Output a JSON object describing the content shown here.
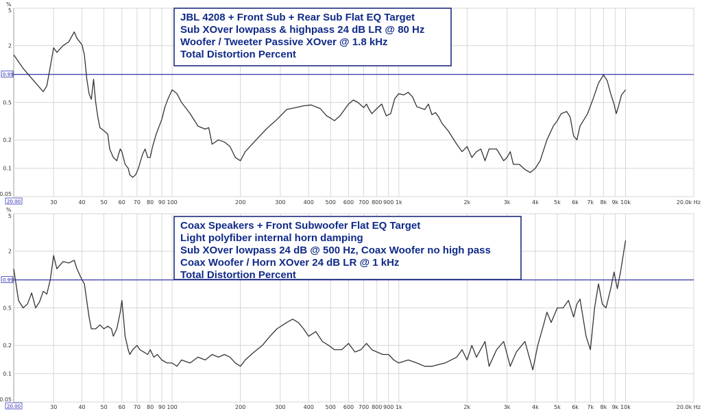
{
  "chart_data": [
    {
      "type": "line",
      "xscale": "log",
      "yscale": "log",
      "xlim": [
        20,
        20000
      ],
      "ylim": [
        0.05,
        5
      ],
      "x_ticks": [
        "30",
        "40",
        "50",
        "60",
        "70",
        "80",
        "90",
        "100",
        "200",
        "300",
        "400",
        "500",
        "600",
        "700",
        "800",
        "900",
        "1k",
        "2k",
        "3k",
        "4k",
        "5k",
        "6k",
        "7k",
        "8k",
        "9k",
        "10k",
        "20.0k Hz"
      ],
      "x_start_label": "20.00",
      "y_ticks": [
        "5",
        "2",
        "0.5",
        "0.2",
        "0.1",
        "0.05"
      ],
      "y_unit": "%",
      "reference_line": {
        "value": 0.99,
        "label": "0.99",
        "color": "#2b2bb0"
      },
      "annotation": [
        "JBL 4208 + Front Sub + Rear Sub Flat EQ Target",
        "Sub XOver lowpass & highpass 24 dB LR @ 80 Hz",
        "Woofer / Tweeter Passive XOver @ 1.8 kHz",
        "Total Distortion Percent"
      ],
      "series": [
        {
          "color": "#333333",
          "points": [
            [
              20,
              1.6
            ],
            [
              22,
              1.15
            ],
            [
              24,
              0.9
            ],
            [
              26,
              0.72
            ],
            [
              27,
              0.65
            ],
            [
              28,
              0.75
            ],
            [
              29,
              1.2
            ],
            [
              30,
              1.9
            ],
            [
              31,
              1.7
            ],
            [
              33,
              2.0
            ],
            [
              35,
              2.2
            ],
            [
              37,
              2.8
            ],
            [
              38,
              2.4
            ],
            [
              40,
              2.05
            ],
            [
              41,
              1.6
            ],
            [
              42,
              0.9
            ],
            [
              43,
              0.62
            ],
            [
              44,
              0.54
            ],
            [
              45,
              0.88
            ],
            [
              46,
              0.5
            ],
            [
              47,
              0.35
            ],
            [
              48,
              0.27
            ],
            [
              50,
              0.25
            ],
            [
              52,
              0.23
            ],
            [
              53,
              0.16
            ],
            [
              55,
              0.13
            ],
            [
              57,
              0.12
            ],
            [
              58,
              0.14
            ],
            [
              59,
              0.16
            ],
            [
              60,
              0.15
            ],
            [
              62,
              0.11
            ],
            [
              64,
              0.1
            ],
            [
              65,
              0.085
            ],
            [
              67,
              0.08
            ],
            [
              69,
              0.085
            ],
            [
              71,
              0.1
            ],
            [
              74,
              0.14
            ],
            [
              76,
              0.16
            ],
            [
              78,
              0.13
            ],
            [
              80,
              0.13
            ],
            [
              82,
              0.17
            ],
            [
              85,
              0.23
            ],
            [
              90,
              0.33
            ],
            [
              93,
              0.45
            ],
            [
              96,
              0.55
            ],
            [
              100,
              0.68
            ],
            [
              105,
              0.62
            ],
            [
              110,
              0.5
            ],
            [
              120,
              0.38
            ],
            [
              130,
              0.28
            ],
            [
              140,
              0.26
            ],
            [
              145,
              0.27
            ],
            [
              150,
              0.18
            ],
            [
              160,
              0.2
            ],
            [
              170,
              0.19
            ],
            [
              180,
              0.17
            ],
            [
              190,
              0.13
            ],
            [
              200,
              0.12
            ],
            [
              210,
              0.15
            ],
            [
              230,
              0.19
            ],
            [
              260,
              0.26
            ],
            [
              290,
              0.33
            ],
            [
              320,
              0.42
            ],
            [
              350,
              0.44
            ],
            [
              380,
              0.46
            ],
            [
              410,
              0.47
            ],
            [
              450,
              0.43
            ],
            [
              480,
              0.36
            ],
            [
              500,
              0.34
            ],
            [
              520,
              0.32
            ],
            [
              550,
              0.36
            ],
            [
              600,
              0.48
            ],
            [
              630,
              0.53
            ],
            [
              660,
              0.5
            ],
            [
              700,
              0.44
            ],
            [
              720,
              0.48
            ],
            [
              740,
              0.42
            ],
            [
              760,
              0.38
            ],
            [
              800,
              0.43
            ],
            [
              840,
              0.48
            ],
            [
              880,
              0.36
            ],
            [
              920,
              0.38
            ],
            [
              960,
              0.55
            ],
            [
              1000,
              0.62
            ],
            [
              1050,
              0.6
            ],
            [
              1100,
              0.64
            ],
            [
              1150,
              0.57
            ],
            [
              1200,
              0.45
            ],
            [
              1300,
              0.42
            ],
            [
              1350,
              0.48
            ],
            [
              1400,
              0.37
            ],
            [
              1450,
              0.39
            ],
            [
              1500,
              0.35
            ],
            [
              1550,
              0.3
            ],
            [
              1650,
              0.25
            ],
            [
              1800,
              0.18
            ],
            [
              1900,
              0.15
            ],
            [
              2000,
              0.17
            ],
            [
              2100,
              0.13
            ],
            [
              2200,
              0.15
            ],
            [
              2300,
              0.16
            ],
            [
              2400,
              0.12
            ],
            [
              2500,
              0.16
            ],
            [
              2700,
              0.16
            ],
            [
              2900,
              0.12
            ],
            [
              3000,
              0.13
            ],
            [
              3100,
              0.15
            ],
            [
              3200,
              0.11
            ],
            [
              3400,
              0.11
            ],
            [
              3600,
              0.097
            ],
            [
              3800,
              0.09
            ],
            [
              4000,
              0.1
            ],
            [
              4200,
              0.12
            ],
            [
              4500,
              0.2
            ],
            [
              4800,
              0.28
            ],
            [
              5000,
              0.32
            ],
            [
              5200,
              0.38
            ],
            [
              5500,
              0.4
            ],
            [
              5700,
              0.35
            ],
            [
              5900,
              0.22
            ],
            [
              6100,
              0.2
            ],
            [
              6300,
              0.28
            ],
            [
              6800,
              0.38
            ],
            [
              7200,
              0.55
            ],
            [
              7600,
              0.8
            ],
            [
              8000,
              0.98
            ],
            [
              8300,
              0.85
            ],
            [
              8600,
              0.62
            ],
            [
              8900,
              0.48
            ],
            [
              9100,
              0.38
            ],
            [
              9300,
              0.45
            ],
            [
              9600,
              0.6
            ],
            [
              10000,
              0.68
            ]
          ]
        }
      ]
    },
    {
      "type": "line",
      "xscale": "log",
      "yscale": "log",
      "xlim": [
        20,
        20000
      ],
      "ylim": [
        0.05,
        5
      ],
      "x_ticks": [
        "30",
        "40",
        "50",
        "60",
        "70",
        "80",
        "90",
        "100",
        "200",
        "300",
        "400",
        "500",
        "600",
        "700",
        "800",
        "900",
        "1k",
        "2k",
        "3k",
        "4k",
        "5k",
        "6k",
        "7k",
        "8k",
        "9k",
        "10k",
        "20.0k Hz"
      ],
      "x_start_label": "20.00",
      "y_ticks": [
        "5",
        "2",
        "0.5",
        "0.2",
        "0.1",
        "0.05"
      ],
      "y_unit": "%",
      "reference_line": {
        "value": 0.99,
        "label": "0.99",
        "color": "#2b2bb0"
      },
      "annotation": [
        "Coax Speakers + Front Subwoofer Flat EQ Target",
        "Light polyfiber internal horn damping",
        "Sub XOver lowpass 24 dB @ 500 Hz, Coax Woofer no high pass",
        "Coax Woofer / Horn XOver 24 dB LR @ 1 kHz",
        "Total Distortion Percent"
      ],
      "series": [
        {
          "color": "#333333",
          "points": [
            [
              20,
              1.3
            ],
            [
              21,
              0.6
            ],
            [
              22,
              0.5
            ],
            [
              23,
              0.55
            ],
            [
              24,
              0.72
            ],
            [
              25,
              0.5
            ],
            [
              26,
              0.58
            ],
            [
              27,
              0.75
            ],
            [
              28,
              0.7
            ],
            [
              29,
              1.0
            ],
            [
              30,
              1.8
            ],
            [
              31,
              1.3
            ],
            [
              33,
              1.55
            ],
            [
              35,
              1.5
            ],
            [
              37,
              1.6
            ],
            [
              38,
              1.3
            ],
            [
              40,
              1.0
            ],
            [
              41,
              0.9
            ],
            [
              42,
              0.6
            ],
            [
              43,
              0.4
            ],
            [
              44,
              0.3
            ],
            [
              46,
              0.3
            ],
            [
              48,
              0.33
            ],
            [
              50,
              0.3
            ],
            [
              52,
              0.32
            ],
            [
              54,
              0.3
            ],
            [
              55,
              0.25
            ],
            [
              57,
              0.3
            ],
            [
              59,
              0.45
            ],
            [
              60,
              0.6
            ],
            [
              61,
              0.4
            ],
            [
              62,
              0.25
            ],
            [
              64,
              0.18
            ],
            [
              65,
              0.16
            ],
            [
              67,
              0.18
            ],
            [
              70,
              0.2
            ],
            [
              72,
              0.18
            ],
            [
              75,
              0.17
            ],
            [
              78,
              0.16
            ],
            [
              80,
              0.18
            ],
            [
              83,
              0.15
            ],
            [
              86,
              0.16
            ],
            [
              90,
              0.14
            ],
            [
              95,
              0.13
            ],
            [
              100,
              0.13
            ],
            [
              105,
              0.12
            ],
            [
              110,
              0.14
            ],
            [
              120,
              0.13
            ],
            [
              130,
              0.15
            ],
            [
              140,
              0.14
            ],
            [
              150,
              0.16
            ],
            [
              160,
              0.15
            ],
            [
              170,
              0.16
            ],
            [
              180,
              0.15
            ],
            [
              190,
              0.13
            ],
            [
              200,
              0.12
            ],
            [
              210,
              0.14
            ],
            [
              230,
              0.17
            ],
            [
              250,
              0.2
            ],
            [
              270,
              0.25
            ],
            [
              290,
              0.3
            ],
            [
              320,
              0.35
            ],
            [
              340,
              0.38
            ],
            [
              360,
              0.35
            ],
            [
              380,
              0.3
            ],
            [
              400,
              0.25
            ],
            [
              430,
              0.28
            ],
            [
              460,
              0.22
            ],
            [
              490,
              0.2
            ],
            [
              520,
              0.18
            ],
            [
              560,
              0.18
            ],
            [
              600,
              0.21
            ],
            [
              640,
              0.17
            ],
            [
              680,
              0.18
            ],
            [
              720,
              0.21
            ],
            [
              760,
              0.18
            ],
            [
              800,
              0.17
            ],
            [
              850,
              0.16
            ],
            [
              900,
              0.16
            ],
            [
              950,
              0.14
            ],
            [
              1000,
              0.13
            ],
            [
              1100,
              0.14
            ],
            [
              1200,
              0.13
            ],
            [
              1300,
              0.12
            ],
            [
              1400,
              0.12
            ],
            [
              1600,
              0.13
            ],
            [
              1800,
              0.15
            ],
            [
              1900,
              0.18
            ],
            [
              2000,
              0.14
            ],
            [
              2100,
              0.2
            ],
            [
              2200,
              0.15
            ],
            [
              2400,
              0.22
            ],
            [
              2500,
              0.12
            ],
            [
              2700,
              0.18
            ],
            [
              2900,
              0.22
            ],
            [
              3100,
              0.12
            ],
            [
              3300,
              0.17
            ],
            [
              3600,
              0.22
            ],
            [
              3900,
              0.11
            ],
            [
              4100,
              0.2
            ],
            [
              4300,
              0.3
            ],
            [
              4500,
              0.45
            ],
            [
              4700,
              0.35
            ],
            [
              5000,
              0.5
            ],
            [
              5300,
              0.5
            ],
            [
              5600,
              0.6
            ],
            [
              5900,
              0.4
            ],
            [
              6100,
              0.55
            ],
            [
              6300,
              0.62
            ],
            [
              6700,
              0.25
            ],
            [
              7000,
              0.18
            ],
            [
              7300,
              0.5
            ],
            [
              7600,
              0.9
            ],
            [
              7900,
              0.55
            ],
            [
              8200,
              0.5
            ],
            [
              8600,
              0.8
            ],
            [
              8900,
              1.2
            ],
            [
              9200,
              0.8
            ],
            [
              9500,
              1.2
            ],
            [
              10000,
              2.6
            ]
          ]
        }
      ]
    }
  ]
}
